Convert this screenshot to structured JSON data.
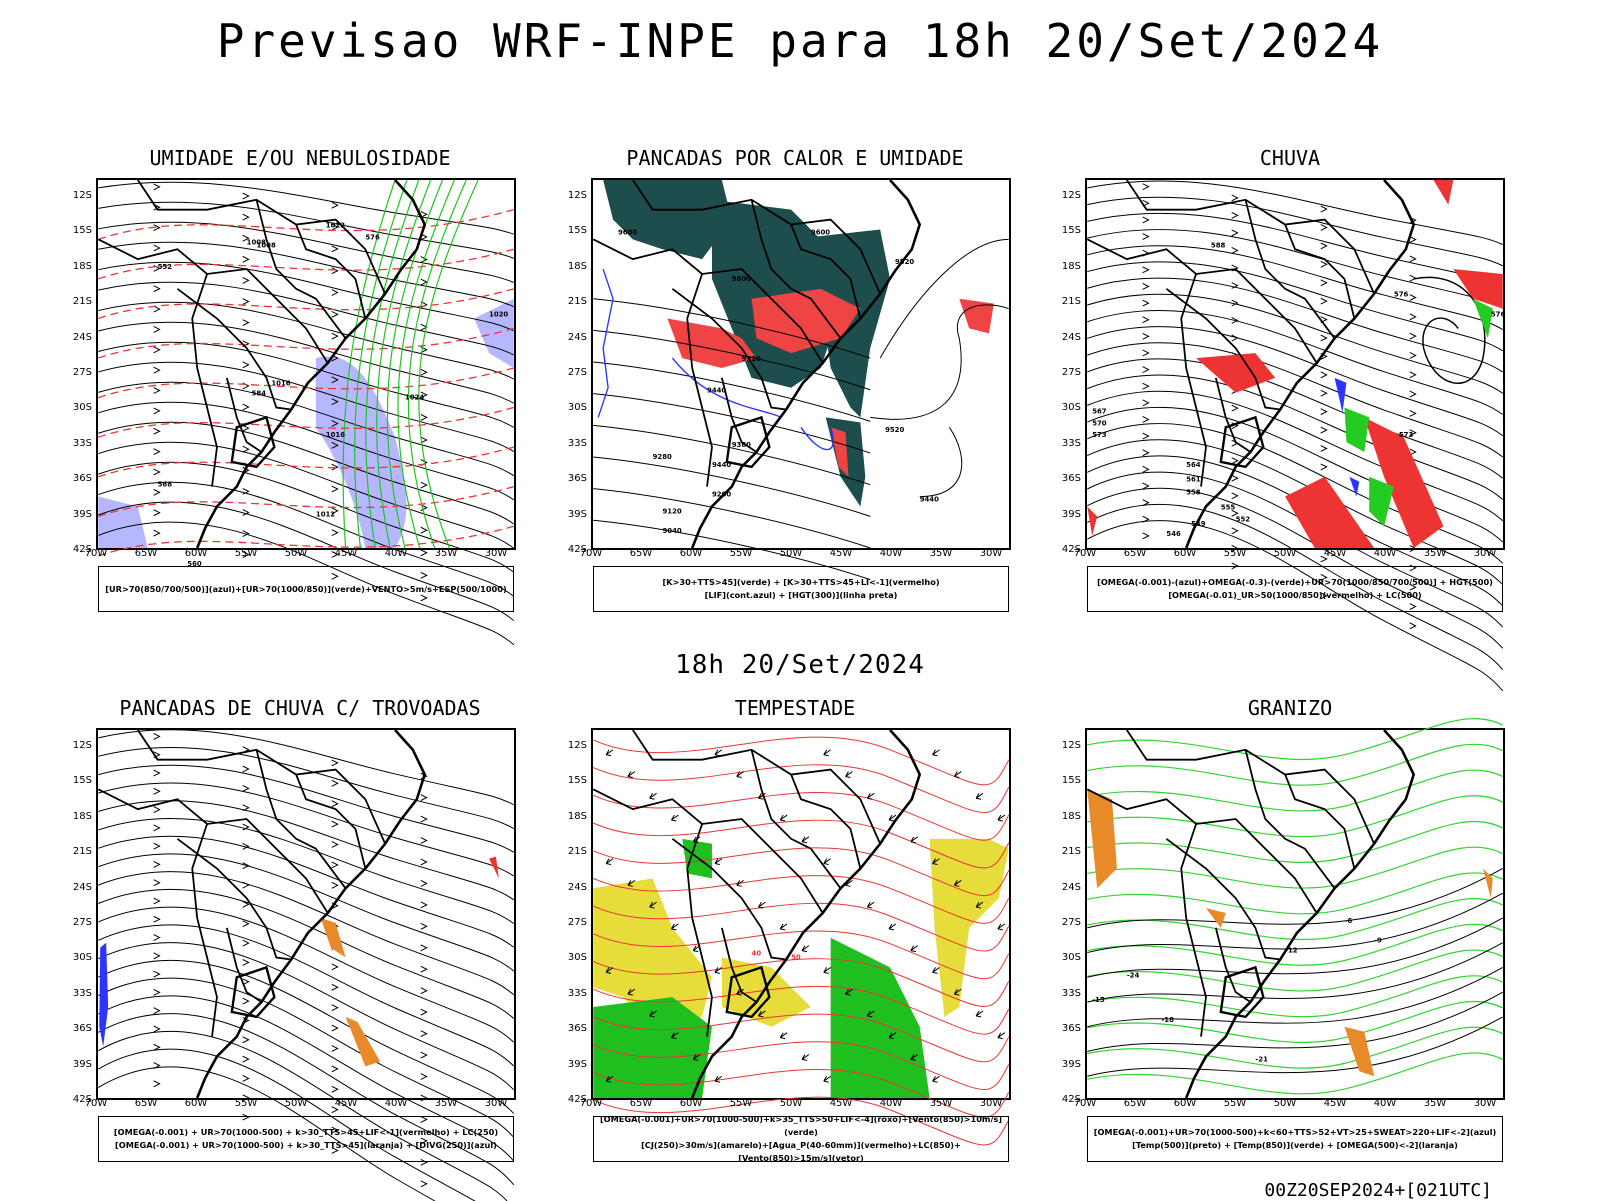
{
  "header": {
    "title": "Previsao WRF-INPE  para 18h 20/Set/2024"
  },
  "mid": {
    "time_label": "18h 20/Set/2024"
  },
  "footer": {
    "run_label": "00Z20SEP2024+[021UTC]"
  },
  "axes": {
    "lat_ticks": [
      "12S",
      "15S",
      "18S",
      "21S",
      "24S",
      "27S",
      "30S",
      "33S",
      "36S",
      "39S",
      "42S"
    ],
    "lon_ticks": [
      "70W",
      "65W",
      "60W",
      "55W",
      "50W",
      "45W",
      "40W",
      "35W",
      "30W"
    ]
  },
  "chart_data": [
    {
      "type": "map",
      "title": "UMIDADE E/OU NEBULOSIDADE",
      "legend": [
        "[UR>70(850/700/500)](azul)+[UR>70(1000/850)](verde)+VENTO>5m/s+ESP(500/1000)"
      ],
      "contour_labels": [
        "1008",
        "1008",
        "1012",
        "1016",
        "1020",
        "1024",
        "1016",
        "1012",
        "552",
        "576",
        "560",
        "568",
        "584"
      ],
      "xlim": [
        70,
        28
      ],
      "ylim": [
        -12,
        -42
      ],
      "colors": {
        "rh_mid": "#7b7bff",
        "rh_low": "#1fc41f",
        "thickness": "#ee3333"
      }
    },
    {
      "type": "map",
      "title": "PANCADAS POR CALOR E UMIDADE",
      "legend": [
        "[K>30+TTS>45](verde) + [K>30+TTS>45+LI<-1](vermelho)",
        "[LIF](cont.azul) + [HGT(300)](linha preta)"
      ],
      "contour_labels": [
        "9600",
        "9600",
        "9600",
        "9520",
        "9520",
        "9440",
        "9440",
        "9360",
        "9280",
        "9200",
        "9120",
        "9040",
        "9520",
        "9440"
      ],
      "xlim": [
        70,
        28
      ],
      "ylim": [
        -12,
        -42
      ],
      "colors": {
        "unstable": "#1e4d4d",
        "li": "#ee4444",
        "lif": "#2b35ff"
      }
    },
    {
      "type": "map",
      "title": "CHUVA",
      "legend": [
        "[OMEGA(-0.001)-(azul)+OMEGA(-0.3)-(verde)+UR>70(1000/850/700/500)] + HGT(500)",
        "[OMEGA(-0.01)_UR>50(1000/850)(vermelho) + LC(500)"
      ],
      "contour_labels": [
        "588",
        "576",
        "573",
        "570",
        "567",
        "564",
        "561",
        "558",
        "555",
        "552",
        "549",
        "546",
        "576",
        "573"
      ],
      "xlim": [
        70,
        28
      ],
      "ylim": [
        -12,
        -42
      ],
      "colors": {
        "omega": "#2b35ff",
        "omega_strong": "#22cc22",
        "rain": "#ee3333"
      }
    },
    {
      "type": "map",
      "title": "PANCADAS DE CHUVA C/ TROVOADAS",
      "legend": [
        "[OMEGA(-0.001) + UR>70(1000-500) + k>30_TTS>45+LIF<-1](vermelho) + LC(250)",
        "[OMEGA(-0.001) + UR>70(1000-500) + k>30_TTS>45](laranja) + [DIVG(250)](azul)"
      ],
      "contour_labels": [],
      "xlim": [
        70,
        28
      ],
      "ylim": [
        -12,
        -42
      ],
      "colors": {
        "storm": "#ee3333",
        "orange": "#e8892a",
        "divg": "#2b35ff"
      }
    },
    {
      "type": "map",
      "title": "TEMPESTADE",
      "legend": [
        "[OMEGA(-0.001)+UR>70(1000-500)+k>35_TTS>50+LIF<-4](roxo)+[Vento(850)>10m/s](verde)",
        "[CJ(250)>30m/s](amarelo)+[Agua_P(40-60mm)](vermelho)+LC(850)+[Vento(850)>15m/s](vetor)"
      ],
      "contour_labels": [
        "40",
        "50"
      ],
      "xlim": [
        70,
        28
      ],
      "ylim": [
        -12,
        -42
      ],
      "colors": {
        "jet": "#e6dc3a",
        "wind": "#1fbf1f",
        "pw": "#ee3333"
      }
    },
    {
      "type": "map",
      "title": "GRANIZO",
      "legend": [
        "[OMEGA(-0.001)+UR>70(1000-500)+k<60+TTS>52+VT>25+SWEAT>220+LIF<-2](azul)",
        "[Temp(500)](preto) + [Temp(850)](verde) + [OMEGA(500)<-2](laranja)"
      ],
      "contour_labels": [
        "-6",
        "-9",
        "-12",
        "-15",
        "-18",
        "-21",
        "-24"
      ],
      "xlim": [
        70,
        28
      ],
      "ylim": [
        -12,
        -42
      ],
      "colors": {
        "t500": "#000000",
        "t850": "#2fd42f",
        "omega500": "#e8892a"
      }
    }
  ]
}
